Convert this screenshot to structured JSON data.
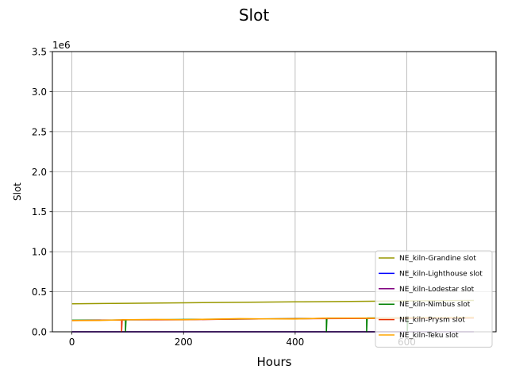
{
  "chart_data": {
    "type": "line",
    "title": "Slot",
    "xlabel": "Hours",
    "ylabel": "Slot",
    "y_offset_label": "1e6",
    "xlim": [
      -35,
      760
    ],
    "ylim": [
      0,
      3500000
    ],
    "xticks": [
      0,
      200,
      400,
      600
    ],
    "xtick_labels": [
      "0",
      "200",
      "400",
      "600"
    ],
    "yticks": [
      0,
      500000,
      1000000,
      1500000,
      2000000,
      2500000,
      3000000,
      3500000
    ],
    "ytick_labels": [
      "0.0",
      "0.5",
      "1.0",
      "1.5",
      "2.0",
      "2.5",
      "3.0",
      "3.5"
    ],
    "grid": true,
    "legend_position": "lower-right",
    "series": [
      {
        "name": "NE_kiln-Grandine slot",
        "color": "#999900",
        "x": [
          0,
          100,
          200,
          300,
          400,
          500,
          600,
          720
        ],
        "y": [
          350000,
          356000,
          362000,
          368000,
          374000,
          380000,
          386000,
          392000
        ]
      },
      {
        "name": "NE_kiln-Lighthouse slot",
        "color": "#0000ff",
        "x": [
          0,
          720
        ],
        "y": [
          0,
          0
        ]
      },
      {
        "name": "NE_kiln-Lodestar slot",
        "color": "#800080",
        "x": [
          0,
          720
        ],
        "y": [
          0,
          0
        ]
      },
      {
        "name": "NE_kiln-Nimbus slot",
        "color": "#008000",
        "x": [
          0,
          90,
          96,
          96,
          97,
          150,
          455,
          456,
          456,
          457,
          527,
          528,
          528,
          529,
          600,
          601,
          601,
          602,
          720
        ],
        "y": [
          145000,
          148000,
          148000,
          0,
          150000,
          152000,
          168000,
          168000,
          0,
          170000,
          172000,
          172000,
          0,
          173000,
          175000,
          175000,
          0,
          176000,
          178000
        ]
      },
      {
        "name": "NE_kiln-Prysm slot",
        "color": "#e62e00",
        "x": [
          0,
          88,
          89,
          89,
          90,
          200,
          300,
          450,
          720
        ],
        "y": [
          140000,
          148000,
          148000,
          0,
          150000,
          150000,
          160000,
          165000,
          172000
        ]
      },
      {
        "name": "NE_kiln-Teku slot",
        "color": "#ffa500",
        "x": [
          0,
          50,
          100,
          150,
          200,
          250,
          300,
          350,
          400,
          450,
          500,
          550,
          600,
          650,
          720
        ],
        "y": [
          140000,
          142000,
          152000,
          155000,
          152000,
          158000,
          165000,
          162000,
          160000,
          170000,
          172000,
          170000,
          175000,
          176000,
          178000
        ]
      }
    ]
  }
}
